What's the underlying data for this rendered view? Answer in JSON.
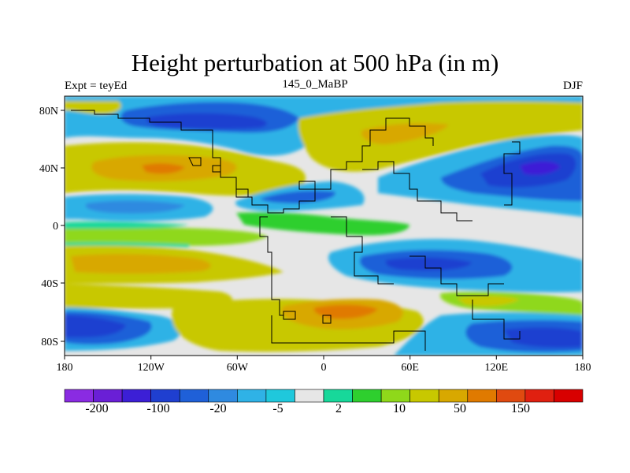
{
  "title": "Height perturbation at 500 hPa (in m)",
  "left_subtitle": "Expt = teyEd",
  "center_subtitle": "145_0_MaBP",
  "right_subtitle": "DJF",
  "x_ticks": [
    "180",
    "120W",
    "60W",
    "0",
    "60E",
    "120E",
    "180"
  ],
  "y_ticks": [
    "80N",
    "40N",
    "0",
    "40S",
    "80S"
  ],
  "colorbar": {
    "colors": [
      "#8a2be2",
      "#6a1fd6",
      "#3c1fd6",
      "#1f3fd0",
      "#1f60d8",
      "#2f8ae0",
      "#2fb2e6",
      "#1fc8dc",
      "#e6e6e6",
      "#17d89a",
      "#2ecf2e",
      "#8fd81a",
      "#c8c800",
      "#d8a800",
      "#e07a00",
      "#e04a10",
      "#e02010",
      "#d80000"
    ],
    "labels": [
      "-200",
      "-100",
      "-20",
      "-5",
      "2",
      "10",
      "50",
      "150"
    ]
  },
  "colors": {
    "neutral": "#e6e6e6",
    "coastline": "#000000"
  }
}
